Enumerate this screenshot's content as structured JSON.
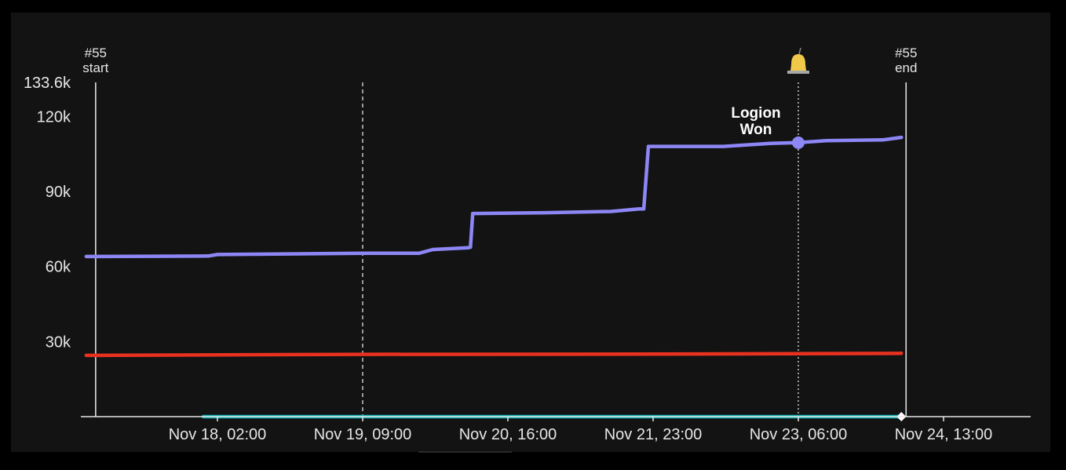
{
  "chart_data": {
    "type": "line",
    "x_axis": {
      "type": "time",
      "tick_labels": [
        "Nov 18, 02:00",
        "Nov 19, 09:00",
        "Nov 20, 16:00",
        "Nov 21, 23:00",
        "Nov 23, 06:00",
        "Nov 24, 13:00"
      ]
    },
    "y_axis": {
      "ylim": [
        0,
        133600
      ],
      "max_label": "133.6k",
      "ticks": [
        {
          "value": 30000,
          "label": "30k"
        },
        {
          "value": 60000,
          "label": "60k"
        },
        {
          "value": 90000,
          "label": "90k"
        },
        {
          "value": 120000,
          "label": "120k"
        }
      ]
    },
    "series": [
      {
        "color": "#8d86f5",
        "points": [
          [
            "2023-11-16T22:00",
            64000
          ],
          [
            "2023-11-17T00:00",
            64000
          ],
          [
            "2023-11-18T00:00",
            64200
          ],
          [
            "2023-11-18T02:00",
            64800
          ],
          [
            "2023-11-19T09:00",
            65300
          ],
          [
            "2023-11-19T21:00",
            65300
          ],
          [
            "2023-11-20T00:00",
            66800
          ],
          [
            "2023-11-20T07:30",
            67500
          ],
          [
            "2023-11-20T08:00",
            67700
          ],
          [
            "2023-11-20T08:30",
            81200
          ],
          [
            "2023-11-21T00:00",
            81500
          ],
          [
            "2023-11-21T14:00",
            82000
          ],
          [
            "2023-11-21T20:00",
            83000
          ],
          [
            "2023-11-21T21:00",
            83000
          ],
          [
            "2023-11-21T22:00",
            108000
          ],
          [
            "2023-11-22T14:00",
            108000
          ],
          [
            "2023-11-23T00:00",
            109200
          ],
          [
            "2023-11-23T06:00",
            109500
          ],
          [
            "2023-11-23T12:00",
            110300
          ],
          [
            "2023-11-24T00:00",
            110600
          ],
          [
            "2023-11-24T04:00",
            111600
          ]
        ]
      },
      {
        "color": "#e8321f",
        "points": [
          [
            "2023-11-16T22:00",
            24500
          ],
          [
            "2023-11-19T09:00",
            24900
          ],
          [
            "2023-11-21T23:00",
            25000
          ],
          [
            "2023-11-24T04:00",
            25300
          ]
        ]
      },
      {
        "color": "#16b5b5",
        "points": [
          [
            "2023-11-17T23:00",
            0
          ],
          [
            "2023-11-24T04:00",
            0
          ]
        ]
      }
    ],
    "markers": [
      {
        "kind": "event-start",
        "line": [
          "#55",
          "start"
        ],
        "x": "2023-11-17T00:00",
        "style": "solid"
      },
      {
        "kind": "event-end",
        "line": [
          "#55",
          "end"
        ],
        "x": "2023-11-24T05:00",
        "style": "solid"
      },
      {
        "kind": "now",
        "x": "2023-11-19T09:00",
        "style": "dashed"
      },
      {
        "kind": "annotation",
        "line": [
          "Logion",
          "Won"
        ],
        "x": "2023-11-23T06:00",
        "y": 109500,
        "style": "dotted",
        "icon": "bell-icon"
      }
    ],
    "grid": false,
    "legend": "none"
  }
}
